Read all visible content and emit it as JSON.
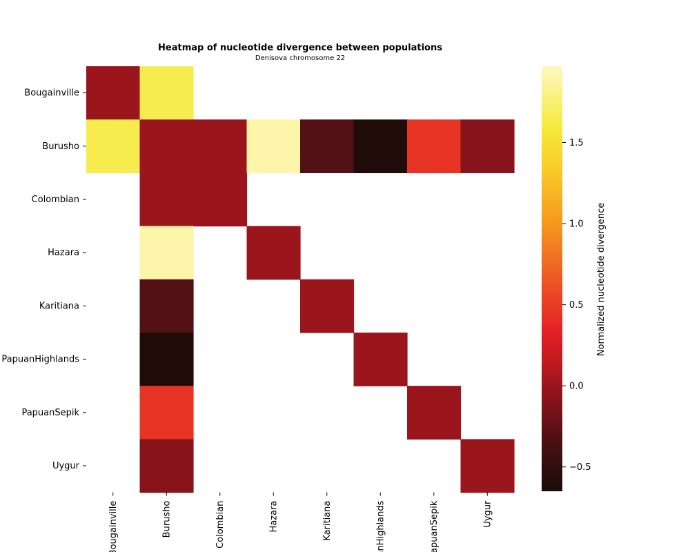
{
  "chart_data": {
    "type": "heatmap",
    "title": "Heatmap of nucleotide divergence between populations",
    "subtitle": "Denisova chromosome 22",
    "rows": [
      "Bougainville",
      "Burusho",
      "Colombian",
      "Hazara",
      "Karitiana",
      "PapuanHighlands",
      "PapuanSepik",
      "Uygur"
    ],
    "columns": [
      "Bougainville",
      "Burusho",
      "Colombian",
      "Hazara",
      "Karitiana",
      "PapuanHighlands",
      "PapuanSepik",
      "Uygur"
    ],
    "values": [
      [
        0.0,
        1.65,
        null,
        null,
        null,
        null,
        null,
        null
      ],
      [
        1.65,
        0.0,
        0.0,
        1.9,
        -0.3,
        -0.62,
        0.45,
        -0.08
      ],
      [
        null,
        0.0,
        0.0,
        null,
        null,
        null,
        null,
        null
      ],
      [
        null,
        1.9,
        null,
        0.0,
        null,
        null,
        null,
        null
      ],
      [
        null,
        -0.3,
        null,
        null,
        0.0,
        null,
        null,
        null
      ],
      [
        null,
        -0.62,
        null,
        null,
        null,
        0.0,
        null,
        null
      ],
      [
        null,
        0.45,
        null,
        null,
        null,
        null,
        0.0,
        null
      ],
      [
        null,
        -0.08,
        null,
        null,
        null,
        null,
        null,
        0.0
      ]
    ],
    "colormap": "hot",
    "colorbar": {
      "label": "Normalized nucleotide divergence",
      "range": [
        -0.65,
        1.97
      ],
      "ticks": [
        -0.5,
        0.0,
        0.5,
        1.0,
        1.5
      ],
      "tick_labels": [
        "−0.5",
        "0.0",
        "0.5",
        "1.0",
        "1.5"
      ]
    },
    "missing_color": "#ffffff"
  }
}
